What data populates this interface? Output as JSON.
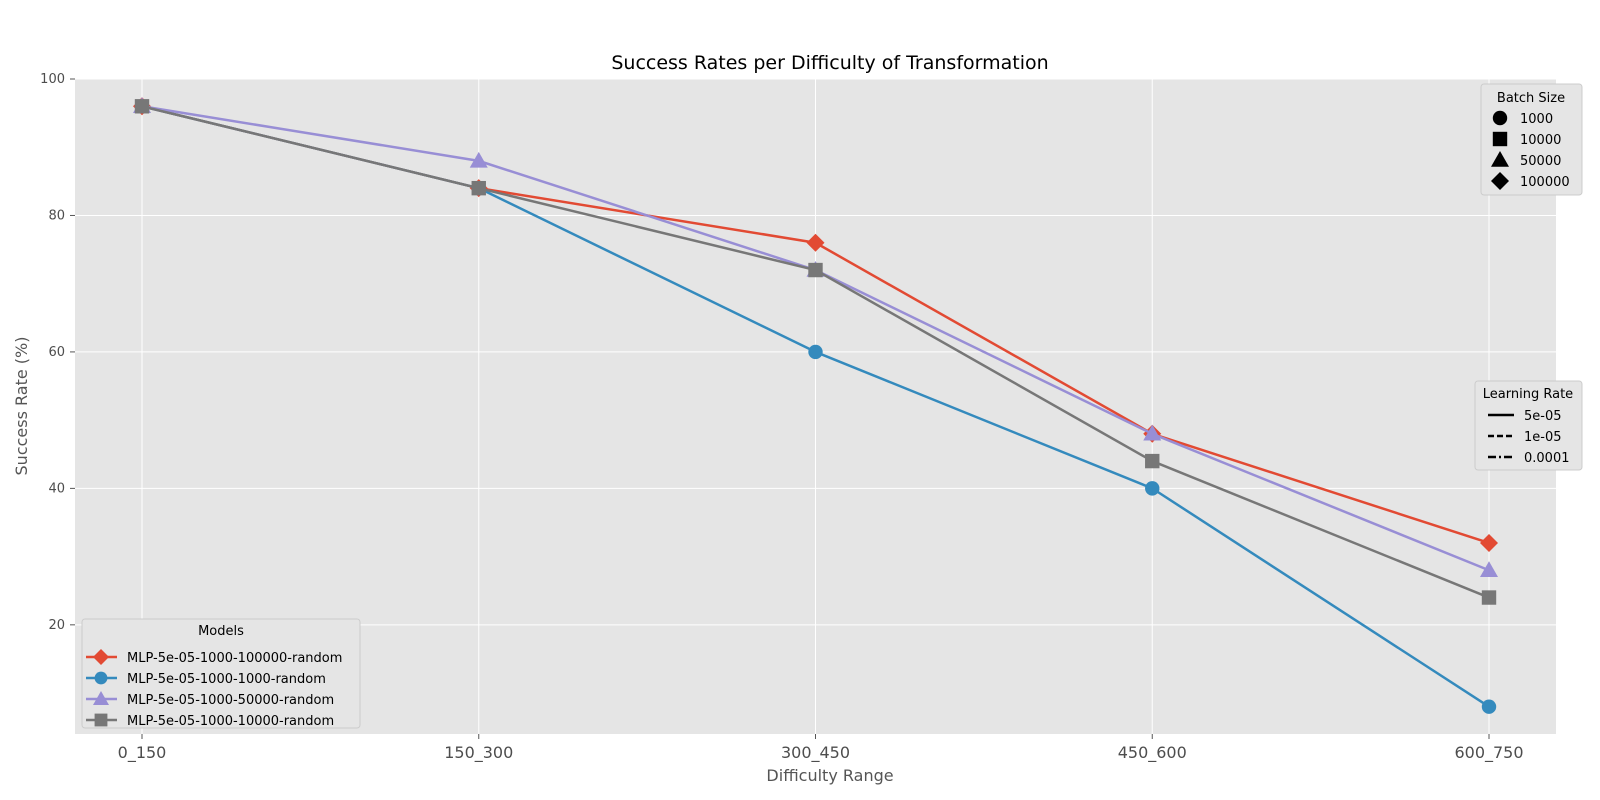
{
  "chart_data": {
    "type": "line",
    "title": "Success Rates per Difficulty of Transformation",
    "xlabel": "Difficulty Range",
    "ylabel": "Success Rate (%)",
    "categories": [
      "0_150",
      "150_300",
      "300_450",
      "450_600",
      "600_750"
    ],
    "ylim": [
      4,
      100
    ],
    "yticks": [
      20,
      40,
      60,
      80,
      100
    ],
    "grid": true,
    "series": [
      {
        "name": "MLP-5e-05-1000-100000-random",
        "color": "#E24A33",
        "marker": "diamond",
        "values": [
          96,
          84,
          76,
          48,
          32
        ]
      },
      {
        "name": "MLP-5e-05-1000-1000-random",
        "color": "#348ABD",
        "marker": "circle",
        "values": [
          96,
          84,
          60,
          40,
          8
        ]
      },
      {
        "name": "MLP-5e-05-1000-50000-random",
        "color": "#988ED5",
        "marker": "triangle",
        "values": [
          96,
          88,
          72,
          48,
          28
        ]
      },
      {
        "name": "MLP-5e-05-1000-10000-random",
        "color": "#777777",
        "marker": "square",
        "values": [
          96,
          84,
          72,
          44,
          24
        ]
      }
    ],
    "legends": {
      "models": {
        "title": "Models",
        "placement": "lower-left"
      },
      "batch_size": {
        "title": "Batch Size",
        "placement": "upper-right",
        "entries": [
          {
            "label": "1000",
            "marker": "circle"
          },
          {
            "label": "10000",
            "marker": "square"
          },
          {
            "label": "50000",
            "marker": "triangle"
          },
          {
            "label": "100000",
            "marker": "diamond"
          }
        ]
      },
      "learning_rate": {
        "title": "Learning Rate",
        "placement": "center-right",
        "entries": [
          {
            "label": "5e-05",
            "style": "solid"
          },
          {
            "label": "1e-05",
            "style": "dashed"
          },
          {
            "label": "0.0001",
            "style": "dashdot"
          }
        ]
      }
    }
  }
}
